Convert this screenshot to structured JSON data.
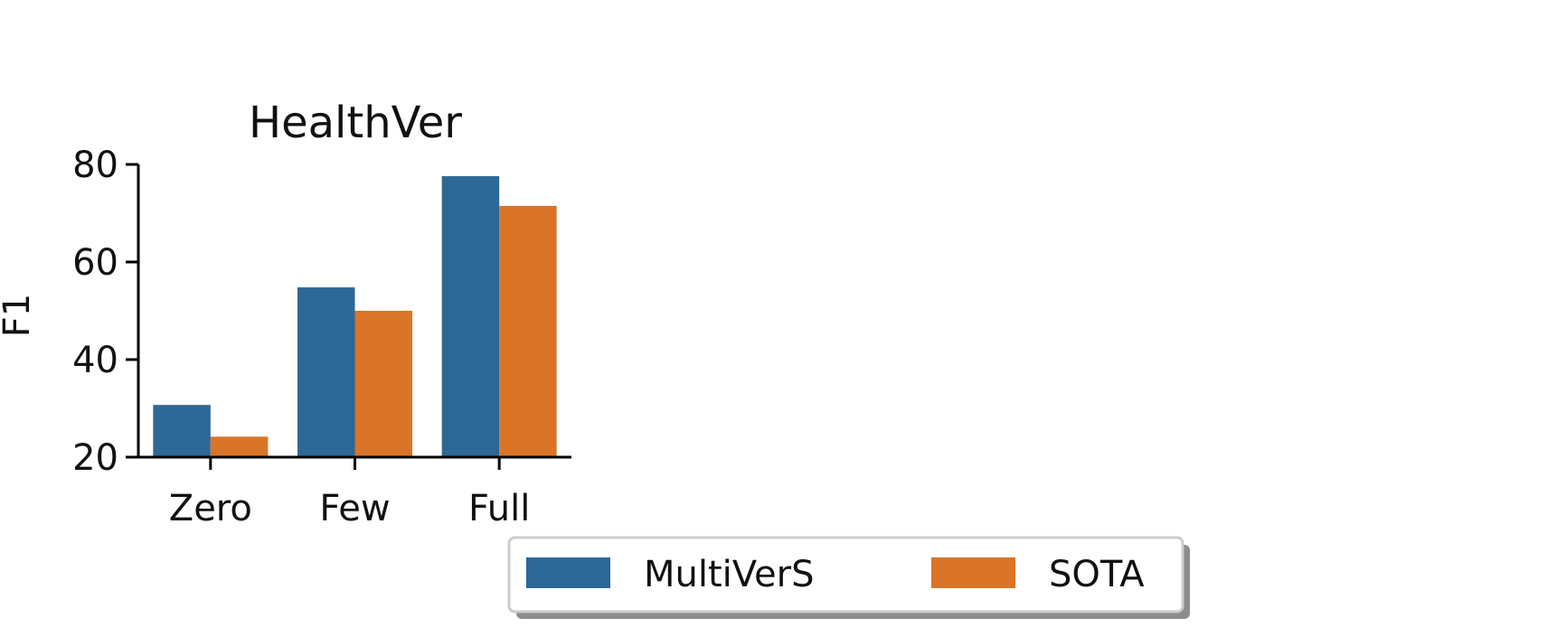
{
  "chart_data": {
    "type": "bar",
    "title": "HealthVer",
    "xlabel": "",
    "ylabel": "F1",
    "ylim": [
      20,
      80
    ],
    "yticks": [
      20,
      40,
      60,
      80
    ],
    "categories": [
      "Zero",
      "Few",
      "Full"
    ],
    "series": [
      {
        "name": "MultiVerS",
        "color": "#2d6896",
        "values": [
          30.7,
          54.8,
          77.6
        ]
      },
      {
        "name": "SOTA",
        "color": "#da7527",
        "values": [
          24.2,
          50.0,
          71.5
        ]
      }
    ],
    "legend": {
      "placement": "bottom-center",
      "shadow": true
    },
    "grid": false
  }
}
